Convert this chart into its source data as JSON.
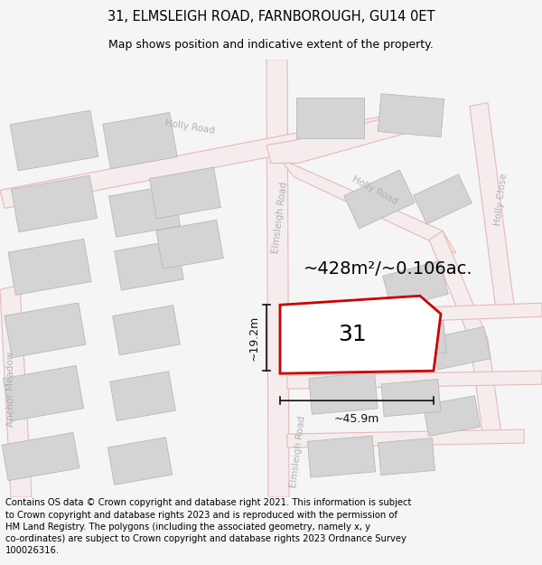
{
  "title": "31, ELMSLEIGH ROAD, FARNBOROUGH, GU14 0ET",
  "subtitle": "Map shows position and indicative extent of the property.",
  "footer": "Contains OS data © Crown copyright and database right 2021. This information is subject\nto Crown copyright and database rights 2023 and is reproduced with the permission of\nHM Land Registry. The polygons (including the associated geometry, namely x, y\nco-ordinates) are subject to Crown copyright and database rights 2023 Ordnance Survey\n100026316.",
  "area_label": "~428m²/~0.106ac.",
  "width_label": "~45.9m",
  "height_label": "~19.2m",
  "number_label": "31",
  "map_bg": "#ffffff",
  "road_fill": "#f5eded",
  "road_edge": "#e8b8b8",
  "building_fill": "#d4d4d4",
  "building_edge": "#b8b8b8",
  "property_color": "#cc0000",
  "label_color": "#b0b0b0",
  "dim_color": "#111111",
  "title_fontsize": 10.5,
  "subtitle_fontsize": 9,
  "footer_fontsize": 7.2,
  "area_fontsize": 14,
  "num_fontsize": 18,
  "dim_fontsize": 9,
  "road_label_fontsize": 7.5
}
